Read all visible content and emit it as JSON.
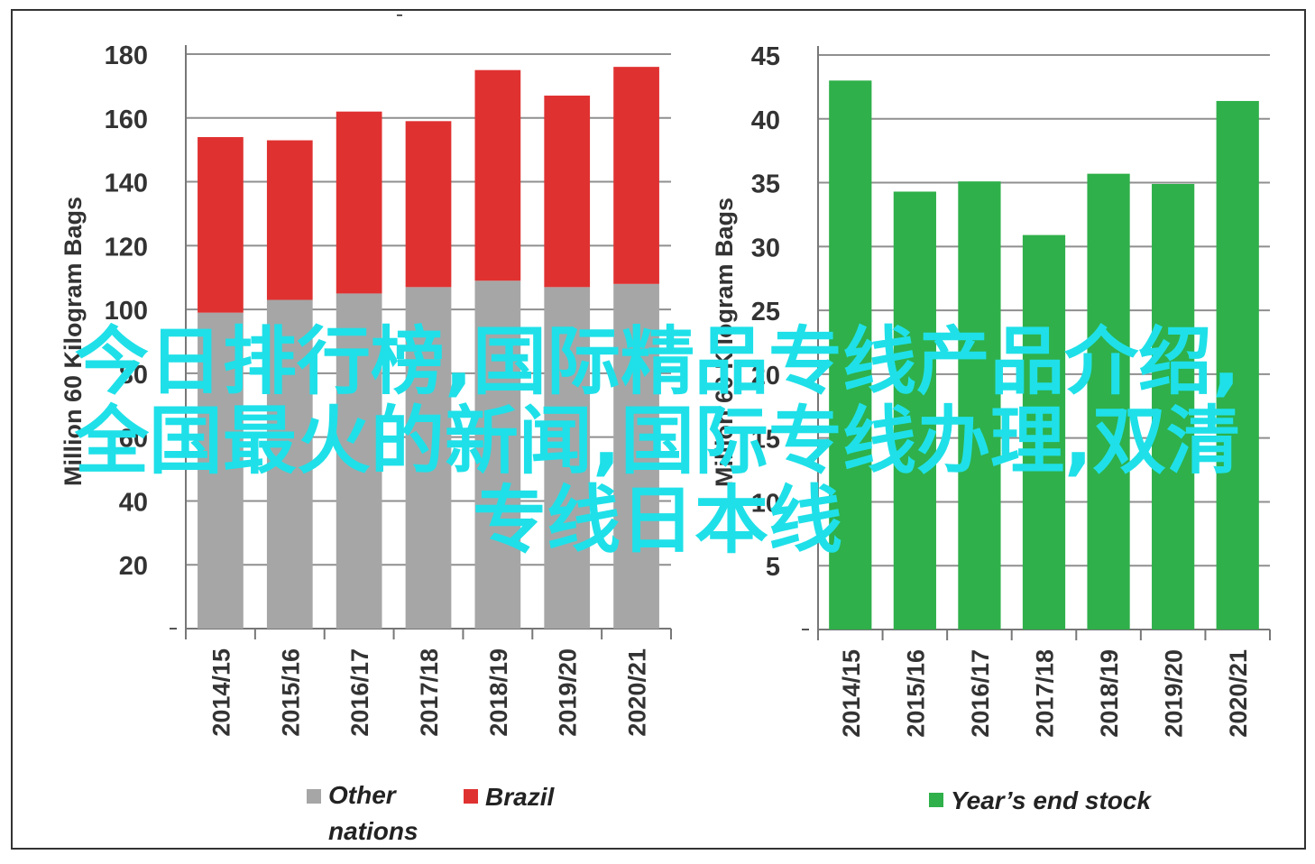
{
  "chart_data": [
    {
      "type": "bar",
      "stacked": true,
      "ylabel": "Million 60 Kilogram Bags",
      "categories": [
        "2014/15",
        "2015/16",
        "2016/17",
        "2017/18",
        "2018/19",
        "2019/20",
        "2020/21"
      ],
      "ylim": [
        0,
        180
      ],
      "yticks": [
        0,
        20,
        40,
        60,
        80,
        100,
        120,
        140,
        160,
        180
      ],
      "ytick_labels": [
        "",
        "20",
        "40",
        "60",
        "80",
        "100",
        "120",
        "140",
        "160",
        "180"
      ],
      "grid": true,
      "legend_position": "bottom",
      "series": [
        {
          "name": "Other nations",
          "color": "#a6a6a6",
          "values": [
            99,
            103,
            105,
            107,
            109,
            107,
            108
          ]
        },
        {
          "name": "Brazil",
          "color": "#e03131",
          "values": [
            55,
            50,
            57,
            52,
            66,
            60,
            68
          ]
        }
      ]
    },
    {
      "type": "bar",
      "ylabel": "Million 60 Kilogram Bags",
      "categories": [
        "2014/15",
        "2015/16",
        "2016/17",
        "2017/18",
        "2018/19",
        "2019/20",
        "2020/21"
      ],
      "ylim": [
        0,
        45
      ],
      "yticks": [
        0,
        5,
        10,
        15,
        20,
        25,
        30,
        35,
        40,
        45
      ],
      "ytick_labels": [
        "",
        "5",
        "10",
        "15",
        "20",
        "25",
        "30",
        "35",
        "40",
        "45"
      ],
      "grid": true,
      "legend_position": "bottom",
      "series": [
        {
          "name": "Year’s end stock",
          "color": "#2fb04a",
          "values": [
            43,
            34.3,
            35.1,
            30.9,
            35.7,
            34.9,
            41.4
          ]
        }
      ]
    }
  ],
  "legend": {
    "other_nations": "Other nations",
    "brazil": "Brazil",
    "year_end_stock": "Year’s end stock"
  },
  "overlay_text": {
    "line1": "今日排行榜,国际精品专线产品介绍,",
    "line2": "全国最火的新闻,国际专线办理,双清",
    "line3": "专线日本线"
  }
}
